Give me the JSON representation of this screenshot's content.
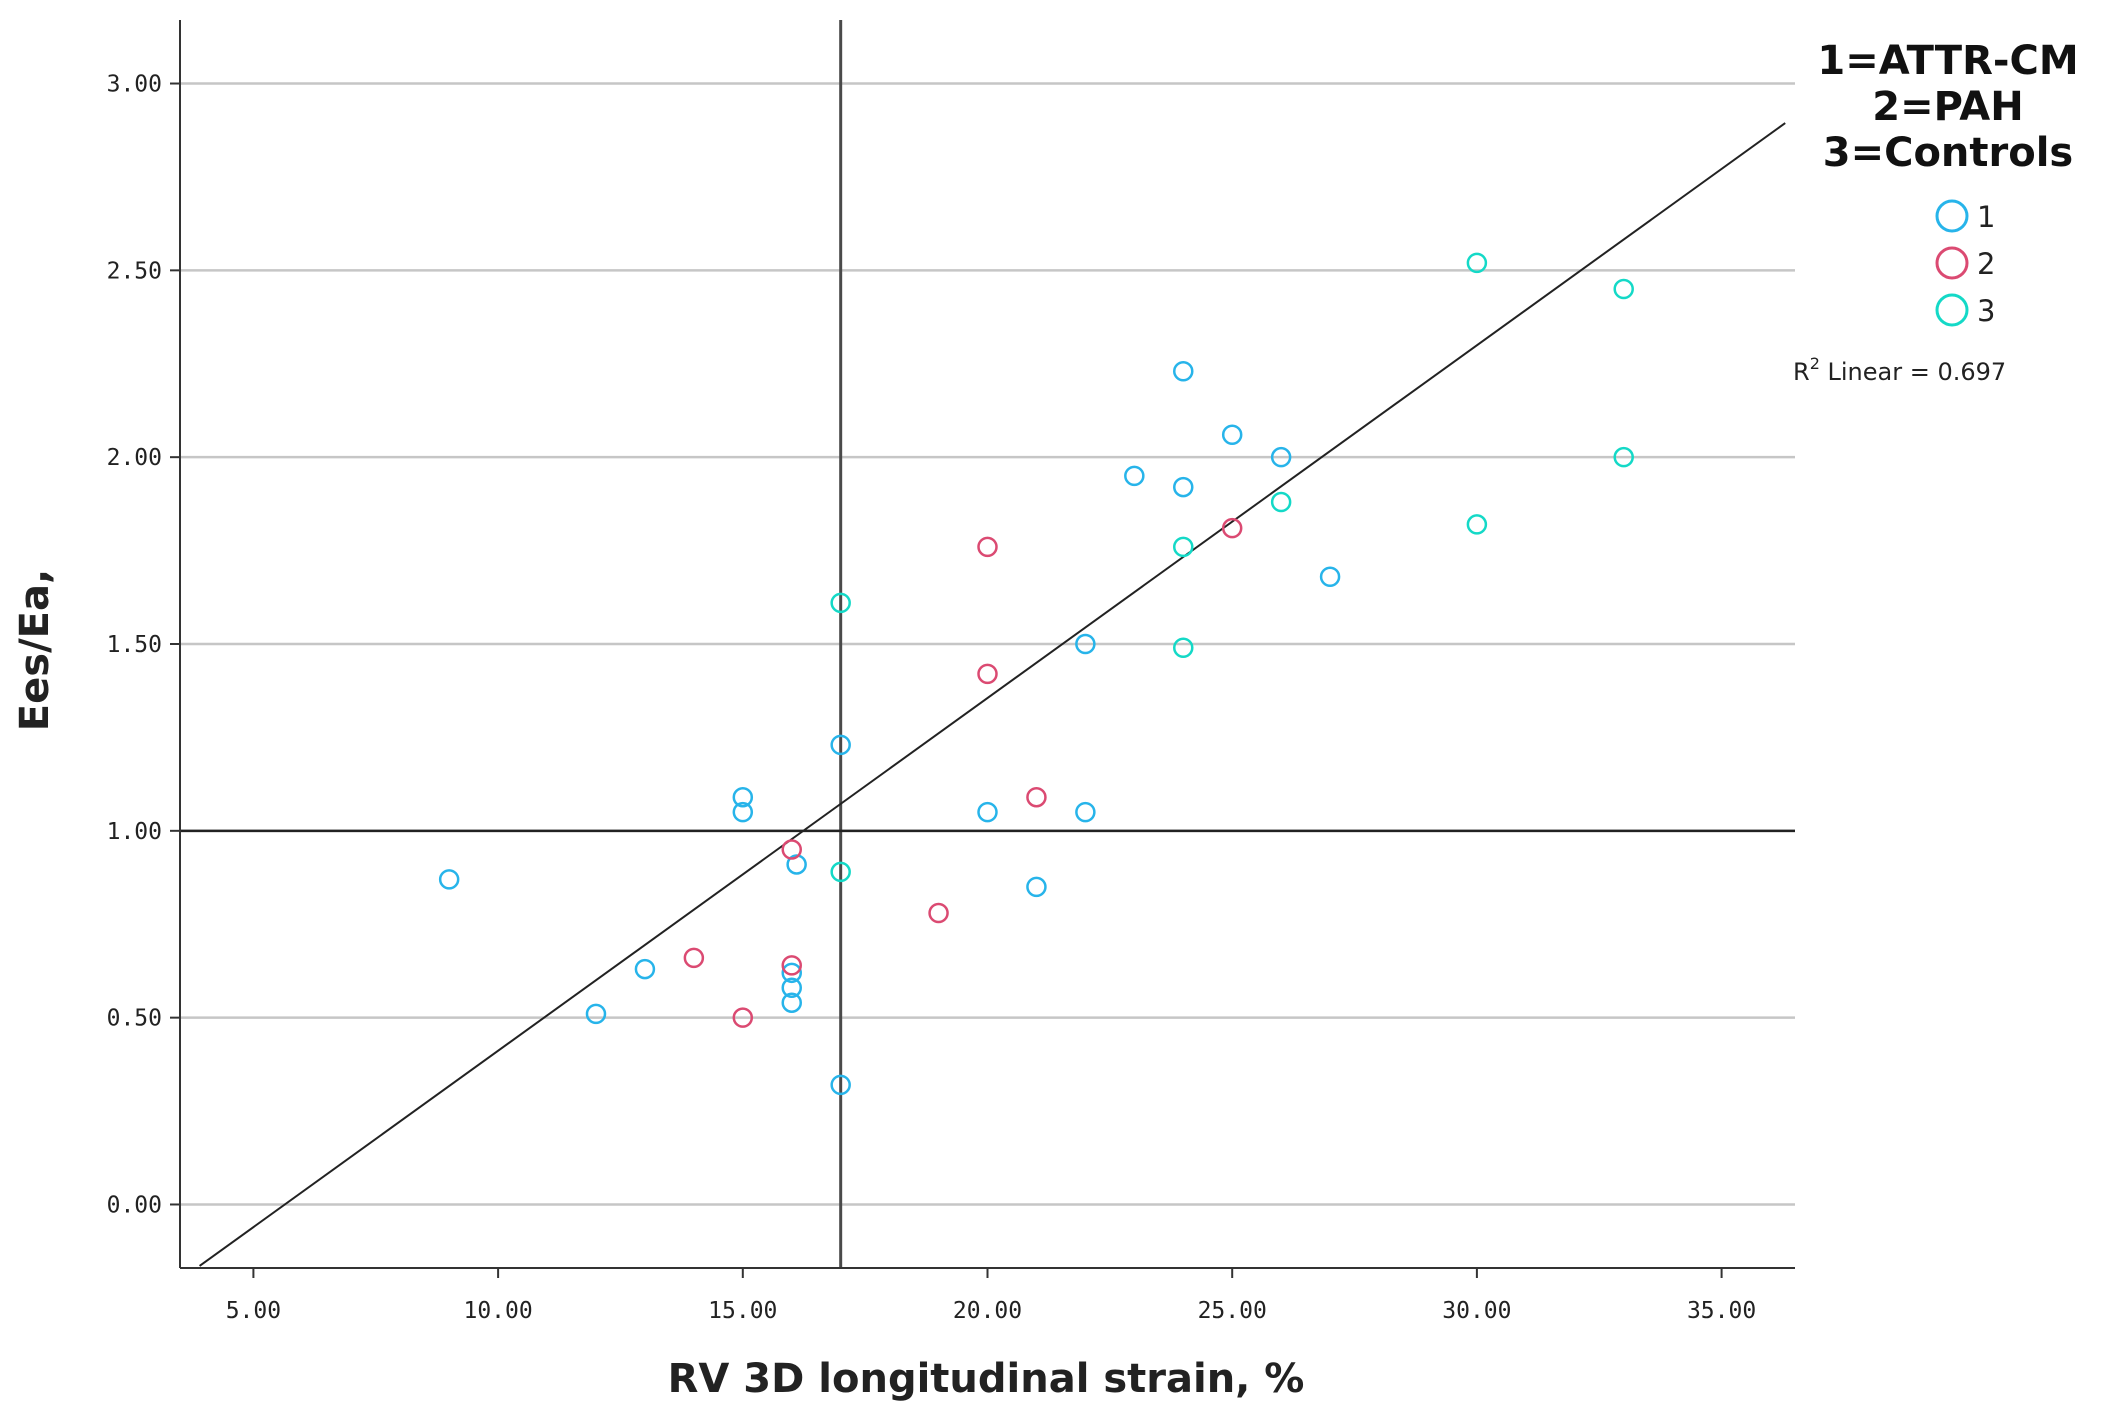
{
  "chart_data": {
    "type": "scatter",
    "xlabel": "RV 3D longitudinal strain, %",
    "ylabel": "Ees/Ea,",
    "xlim": [
      3.5,
      36.5
    ],
    "ylim": [
      -0.17,
      3.17
    ],
    "xticks": [
      "5.00",
      "10.00",
      "15.00",
      "20.00",
      "25.00",
      "30.00",
      "35.00"
    ],
    "xtick_values": [
      5,
      10,
      15,
      20,
      25,
      30,
      35
    ],
    "yticks": [
      "0.00",
      "0.50",
      "1.00",
      "1.50",
      "2.00",
      "2.50",
      "3.00"
    ],
    "ytick_values": [
      0,
      0.5,
      1.0,
      1.5,
      2.0,
      2.5,
      3.0
    ],
    "reference_lines": {
      "x": 17,
      "y": 1.0
    },
    "legend": {
      "title_lines": [
        "1=ATTR-CM",
        "2=PAH",
        "3=Controls"
      ],
      "entries": [
        {
          "label": "1",
          "color": "#27b4ea"
        },
        {
          "label": "2",
          "color": "#db4a72"
        },
        {
          "label": "3",
          "color": "#14d9c7"
        }
      ]
    },
    "fit": {
      "type": "linear",
      "r2_label": "R",
      "r2_sup": "2",
      "r2_text": " Linear = 0.697",
      "slope": 0.0944,
      "intercept": -0.5326,
      "x_range": [
        3.9,
        36.3
      ]
    },
    "series": [
      {
        "name": "1",
        "color": "#27b4ea",
        "points": [
          [
            9,
            0.87
          ],
          [
            12,
            0.51
          ],
          [
            13,
            0.63
          ],
          [
            15,
            1.09
          ],
          [
            15,
            1.05
          ],
          [
            16,
            0.62
          ],
          [
            16,
            0.58
          ],
          [
            16,
            0.54
          ],
          [
            16.1,
            0.91
          ],
          [
            17,
            1.23
          ],
          [
            17,
            0.32
          ],
          [
            20,
            1.05
          ],
          [
            21,
            0.85
          ],
          [
            22,
            1.5
          ],
          [
            22,
            1.05
          ],
          [
            23,
            1.95
          ],
          [
            24,
            2.23
          ],
          [
            24,
            1.92
          ],
          [
            25,
            2.06
          ],
          [
            26,
            2.0
          ],
          [
            27,
            1.68
          ]
        ]
      },
      {
        "name": "2",
        "color": "#db4a72",
        "points": [
          [
            14,
            0.66
          ],
          [
            15,
            0.5
          ],
          [
            16,
            0.95
          ],
          [
            16,
            0.64
          ],
          [
            19,
            0.78
          ],
          [
            20,
            1.76
          ],
          [
            20,
            1.42
          ],
          [
            21,
            1.09
          ],
          [
            25,
            1.81
          ]
        ]
      },
      {
        "name": "3",
        "color": "#14d9c7",
        "points": [
          [
            17,
            1.61
          ],
          [
            17,
            0.89
          ],
          [
            24,
            1.76
          ],
          [
            24,
            1.49
          ],
          [
            26,
            1.88
          ],
          [
            30,
            2.52
          ],
          [
            30,
            1.82
          ],
          [
            33,
            2.45
          ],
          [
            33,
            2.0
          ]
        ]
      }
    ]
  }
}
